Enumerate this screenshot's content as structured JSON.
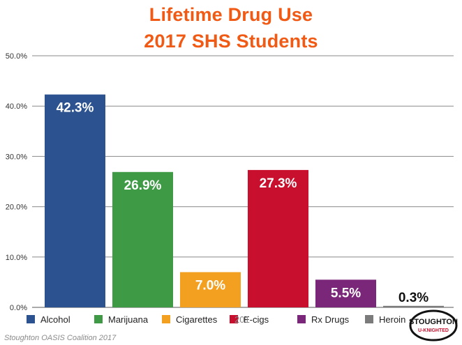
{
  "title_line1": "Lifetime Drug Use",
  "title_line2": "2017 SHS Students",
  "chart_data": {
    "type": "bar",
    "title": "Lifetime Drug Use 2017 SHS Students",
    "categories": [
      "Alcohol",
      "Marijuana",
      "Cigarettes",
      "E-cigs",
      "Rx Drugs",
      "Heroin"
    ],
    "values": [
      42.3,
      26.9,
      7.0,
      27.3,
      5.5,
      0.3
    ],
    "value_labels": [
      "42.3%",
      "26.9%",
      "7.0%",
      "27.3%",
      "5.5%",
      "0.3%"
    ],
    "colors": [
      "#2c538f",
      "#3f9a46",
      "#f3a020",
      "#c8102e",
      "#7b2779",
      "#7b7b7b"
    ],
    "ylim": [
      0,
      50
    ],
    "yticks": [
      0,
      10,
      20,
      30,
      40,
      50
    ],
    "ytick_labels": [
      "0.0%",
      "10.0%",
      "20.0%",
      "30.0%",
      "40.0%",
      "50.0%"
    ],
    "xlabel": "",
    "ylabel": "",
    "grid": true,
    "legend_position": "bottom",
    "legend_overlap_text": "201"
  },
  "footer": "Stoughton OASIS Coalition 2017",
  "logo": {
    "line1": "STOUGHTON",
    "line2": "U-KNIGHTED"
  }
}
